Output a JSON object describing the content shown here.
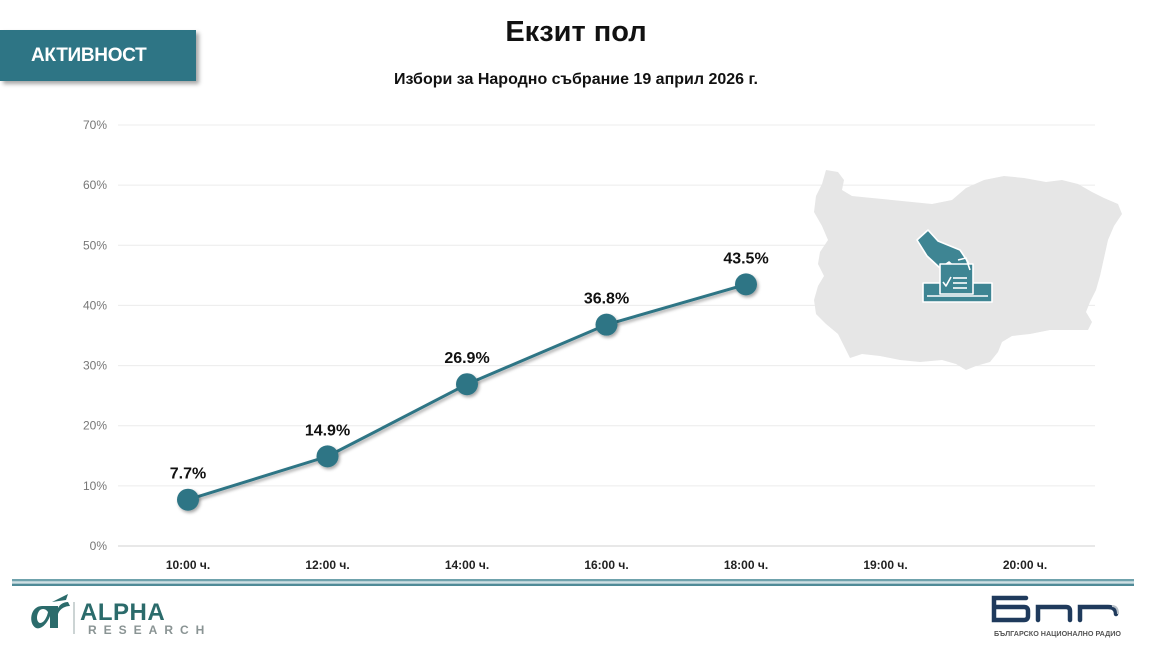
{
  "header": {
    "badge_label": "АКТИВНОСТ",
    "title": "Екзит пол",
    "subtitle": "Избори за Народно събрание 19 април 2026 г."
  },
  "colors": {
    "accent": "#2e7585",
    "badge": "#2e7585",
    "map_fill": "#e6e6e6",
    "gridline": "#ececec",
    "axis_text": "#777777"
  },
  "chart_data": {
    "type": "line",
    "title": "Екзит пол",
    "subtitle": "Избори за Народно събрание 19 април 2026 г.",
    "xlabel": "",
    "ylabel": "",
    "categories": [
      "10:00 ч.",
      "12:00 ч.",
      "14:00 ч.",
      "16:00 ч.",
      "18:00 ч.",
      "19:00 ч.",
      "20:00 ч."
    ],
    "series": [
      {
        "name": "Активност",
        "values": [
          7.7,
          14.9,
          26.9,
          36.8,
          43.5,
          null,
          null
        ]
      }
    ],
    "data_labels": [
      "7.7%",
      "14.9%",
      "26.9%",
      "36.8%",
      "43.5%",
      "",
      ""
    ],
    "yticks": [
      "0%",
      "10%",
      "20%",
      "30%",
      "40%",
      "50%",
      "60%",
      "70%"
    ],
    "ylim": [
      0,
      70
    ],
    "grid": true,
    "legend": "none"
  },
  "icons": {
    "map": "bulgaria-map-icon",
    "ballot": "ballot-box-icon"
  },
  "footer": {
    "left_logo_main": "ALPHA",
    "left_logo_sub": "RESEARCH",
    "left_logo_mark": "αr",
    "right_logo_main": "бнр",
    "right_logo_sub": "БЪЛГАРСКО НАЦИОНАЛНО РАДИО"
  }
}
